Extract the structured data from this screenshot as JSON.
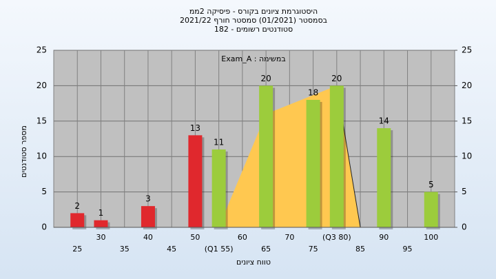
{
  "chart_data": {
    "type": "bar",
    "title": "היסטוגרמת ציונים בקורס - פיסיקה 2ממ",
    "subtitle": "בסמסטר  (01/2021)  סמסטר חורף 2021/22",
    "subtitle2": "סטודנטים רשומים - 182",
    "annotation": "Exam_A : במשימה",
    "ylabel": "מספר סטודנטים",
    "xlabel": "טווח ציונים",
    "x": [
      25,
      30,
      40,
      50,
      55,
      65,
      75,
      80,
      90,
      100
    ],
    "values": [
      2,
      1,
      3,
      13,
      11,
      20,
      18,
      20,
      14,
      5
    ],
    "colors": [
      "#e0282d",
      "#e0282d",
      "#e0282d",
      "#e0282d",
      "#9ccc3c",
      "#9ccc3c",
      "#9ccc3c",
      "#9ccc3c",
      "#9ccc3c",
      "#9ccc3c"
    ],
    "area": {
      "color": "#ffc850",
      "x": [
        55,
        65,
        80,
        85
      ],
      "y": [
        0,
        16,
        20,
        0
      ]
    },
    "xlim": [
      20,
      105
    ],
    "xticks": [
      25,
      30,
      35,
      40,
      45,
      50,
      {
        "value": 55,
        "label": "(Q1 55)"
      },
      60,
      65,
      70,
      75,
      {
        "value": 80,
        "label": "(Q3 80)"
      },
      85,
      90,
      95,
      100
    ],
    "ylim": [
      0,
      25
    ],
    "yticks": [
      0,
      5,
      10,
      15,
      20,
      25
    ],
    "y2lim": [
      0,
      25
    ],
    "y2ticks": [
      0,
      5,
      10,
      15,
      20,
      25
    ],
    "grid": true
  }
}
